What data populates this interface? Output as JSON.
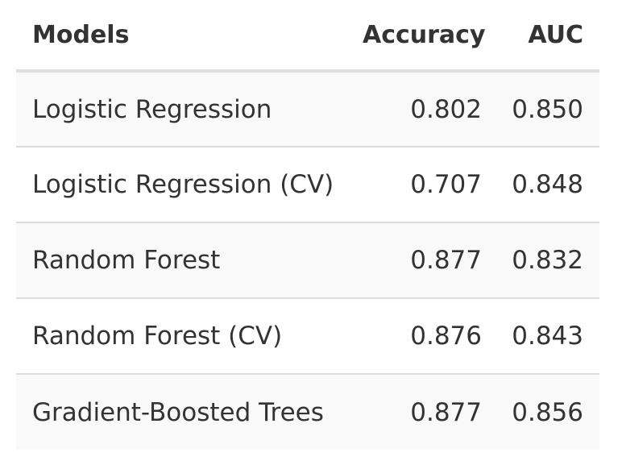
{
  "chart_data": {
    "type": "table",
    "columns": [
      "Models",
      "Accuracy",
      "AUC"
    ],
    "rows": [
      {
        "model": "Logistic Regression",
        "accuracy": "0.802",
        "auc": "0.850"
      },
      {
        "model": "Logistic Regression (CV)",
        "accuracy": "0.707",
        "auc": "0.848"
      },
      {
        "model": "Random Forest",
        "accuracy": "0.877",
        "auc": "0.832"
      },
      {
        "model": "Random Forest (CV)",
        "accuracy": "0.876",
        "auc": "0.843"
      },
      {
        "model": "Gradient-Boosted Trees",
        "accuracy": "0.877",
        "auc": "0.856"
      }
    ]
  },
  "colors": {
    "text": "#333333",
    "striped_row": "#f9f9f9",
    "row_border": "#dddddd",
    "header_border": "#dedede"
  }
}
